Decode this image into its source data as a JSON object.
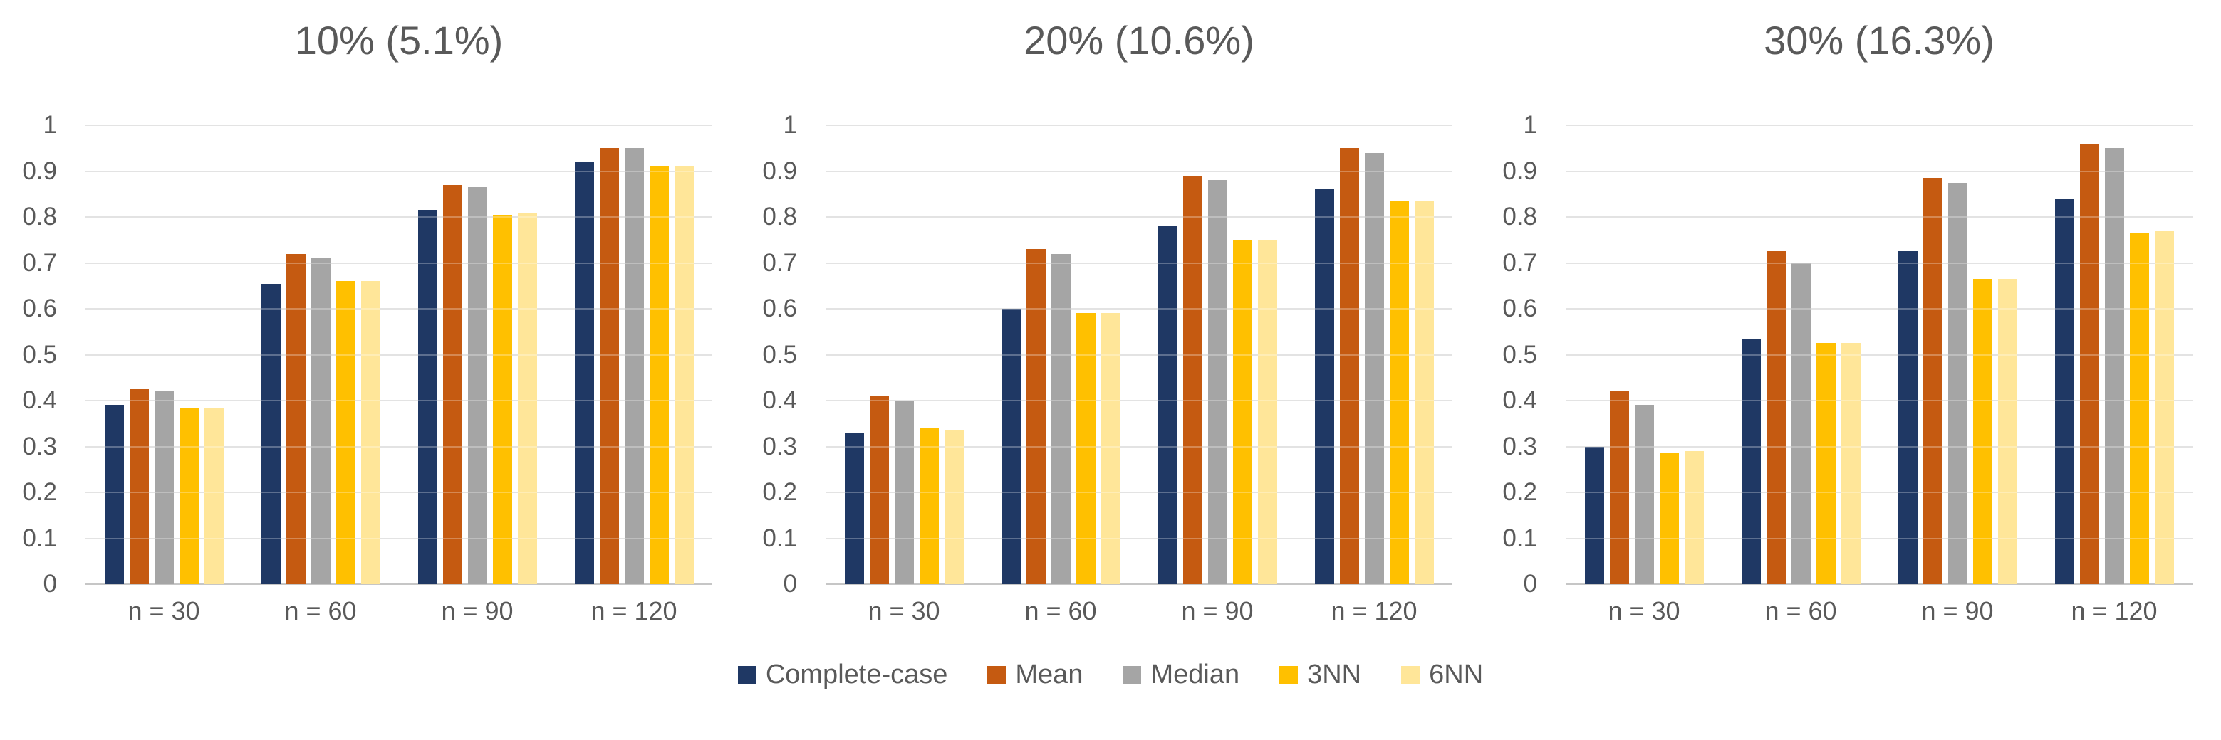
{
  "colors": {
    "background": "#FFFFFF",
    "text": "#595959",
    "gridline": "#D9D9D9",
    "axis_line": "#C6C6C6"
  },
  "legend": {
    "position": "bottom-center",
    "items": [
      {
        "label": "Complete-case",
        "color": "#1F3864"
      },
      {
        "label": "Mean",
        "color": "#C55A11"
      },
      {
        "label": "Median",
        "color": "#A5A5A5"
      },
      {
        "label": "3NN",
        "color": "#FFC000"
      },
      {
        "label": "6NN",
        "color": "#FFE699"
      }
    ]
  },
  "chart_data": [
    {
      "type": "bar",
      "title": "10% (5.1%)",
      "categories": [
        "n = 30",
        "n = 60",
        "n = 90",
        "n = 120"
      ],
      "series": [
        {
          "name": "Complete-case",
          "color": "#1F3864",
          "values": [
            0.39,
            0.655,
            0.815,
            0.92
          ]
        },
        {
          "name": "Mean",
          "color": "#C55A11",
          "values": [
            0.425,
            0.72,
            0.87,
            0.95
          ]
        },
        {
          "name": "Median",
          "color": "#A5A5A5",
          "values": [
            0.42,
            0.71,
            0.865,
            0.95
          ]
        },
        {
          "name": "3NN",
          "color": "#FFC000",
          "values": [
            0.385,
            0.66,
            0.805,
            0.91
          ]
        },
        {
          "name": "6NN",
          "color": "#FFE699",
          "values": [
            0.385,
            0.66,
            0.81,
            0.91
          ]
        }
      ],
      "ylim": [
        0,
        1
      ],
      "yticks": [
        "1",
        "0.9",
        "0.8",
        "0.7",
        "0.6",
        "0.5",
        "0.4",
        "0.3",
        "0.2",
        "0.1",
        "0"
      ],
      "grid": "horizontal",
      "legend_position": "shared-bottom"
    },
    {
      "type": "bar",
      "title": "20% (10.6%)",
      "categories": [
        "n = 30",
        "n = 60",
        "n = 90",
        "n = 120"
      ],
      "series": [
        {
          "name": "Complete-case",
          "color": "#1F3864",
          "values": [
            0.33,
            0.6,
            0.78,
            0.86
          ]
        },
        {
          "name": "Mean",
          "color": "#C55A11",
          "values": [
            0.41,
            0.73,
            0.89,
            0.95
          ]
        },
        {
          "name": "Median",
          "color": "#A5A5A5",
          "values": [
            0.4,
            0.72,
            0.88,
            0.94
          ]
        },
        {
          "name": "3NN",
          "color": "#FFC000",
          "values": [
            0.34,
            0.59,
            0.75,
            0.835
          ]
        },
        {
          "name": "6NN",
          "color": "#FFE699",
          "values": [
            0.335,
            0.59,
            0.75,
            0.835
          ]
        }
      ],
      "ylim": [
        0,
        1
      ],
      "yticks": [
        "1",
        "0.9",
        "0.8",
        "0.7",
        "0.6",
        "0.5",
        "0.4",
        "0.3",
        "0.2",
        "0.1",
        "0"
      ],
      "grid": "horizontal",
      "legend_position": "shared-bottom"
    },
    {
      "type": "bar",
      "title": "30% (16.3%)",
      "categories": [
        "n = 30",
        "n = 60",
        "n = 90",
        "n = 120"
      ],
      "series": [
        {
          "name": "Complete-case",
          "color": "#1F3864",
          "values": [
            0.3,
            0.535,
            0.725,
            0.84
          ]
        },
        {
          "name": "Mean",
          "color": "#C55A11",
          "values": [
            0.42,
            0.725,
            0.885,
            0.96
          ]
        },
        {
          "name": "Median",
          "color": "#A5A5A5",
          "values": [
            0.39,
            0.7,
            0.875,
            0.95
          ]
        },
        {
          "name": "3NN",
          "color": "#FFC000",
          "values": [
            0.285,
            0.525,
            0.665,
            0.765
          ]
        },
        {
          "name": "6NN",
          "color": "#FFE699",
          "values": [
            0.29,
            0.525,
            0.665,
            0.77
          ]
        }
      ],
      "ylim": [
        0,
        1
      ],
      "yticks": [
        "1",
        "0.9",
        "0.8",
        "0.7",
        "0.6",
        "0.5",
        "0.4",
        "0.3",
        "0.2",
        "0.1",
        "0"
      ],
      "grid": "horizontal",
      "legend_position": "shared-bottom"
    }
  ]
}
